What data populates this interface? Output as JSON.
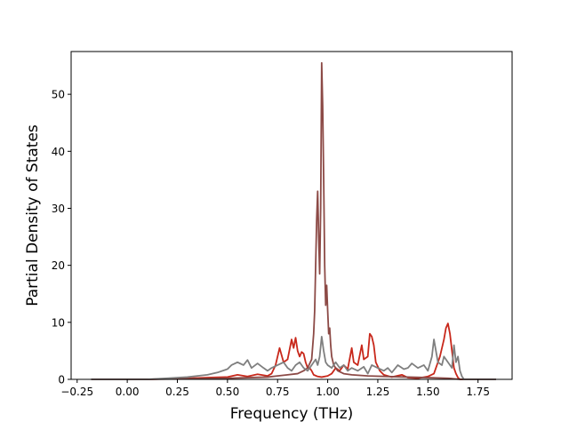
{
  "chart_data": {
    "type": "line",
    "title": "",
    "xlabel": "Frequency (THz)",
    "ylabel": "Partial Density of States",
    "xlim": [
      -0.28,
      1.92
    ],
    "ylim": [
      0,
      57.5
    ],
    "xticks": [
      -0.25,
      0.0,
      0.25,
      0.5,
      0.75,
      1.0,
      1.25,
      1.5,
      1.75
    ],
    "xtick_labels": [
      "−0.25",
      "0.00",
      "0.25",
      "0.50",
      "0.75",
      "1.00",
      "1.25",
      "1.50",
      "1.75"
    ],
    "yticks": [
      0,
      10,
      20,
      30,
      40,
      50
    ],
    "ytick_labels": [
      "0",
      "10",
      "20",
      "30",
      "40",
      "50"
    ],
    "grid": false,
    "legend": false,
    "series": [
      {
        "color": "#c8281b",
        "points": [
          [
            -0.18,
            0
          ],
          [
            0.1,
            0
          ],
          [
            0.2,
            0.1
          ],
          [
            0.3,
            0.2
          ],
          [
            0.4,
            0.3
          ],
          [
            0.5,
            0.4
          ],
          [
            0.55,
            0.8
          ],
          [
            0.6,
            0.5
          ],
          [
            0.65,
            0.9
          ],
          [
            0.7,
            0.6
          ],
          [
            0.72,
            1.0
          ],
          [
            0.74,
            2.5
          ],
          [
            0.76,
            5.5
          ],
          [
            0.78,
            3.0
          ],
          [
            0.8,
            3.5
          ],
          [
            0.82,
            7.0
          ],
          [
            0.83,
            5.5
          ],
          [
            0.84,
            7.3
          ],
          [
            0.85,
            5.0
          ],
          [
            0.86,
            4.0
          ],
          [
            0.87,
            4.8
          ],
          [
            0.88,
            4.5
          ],
          [
            0.89,
            3.0
          ],
          [
            0.9,
            2.0
          ],
          [
            0.91,
            2.0
          ],
          [
            0.92,
            1.5
          ],
          [
            0.93,
            0.8
          ],
          [
            0.95,
            0.5
          ],
          [
            0.97,
            0.4
          ],
          [
            1.0,
            0.6
          ],
          [
            1.02,
            1.0
          ],
          [
            1.04,
            2.0
          ],
          [
            1.06,
            1.5
          ],
          [
            1.08,
            2.5
          ],
          [
            1.1,
            1.8
          ],
          [
            1.12,
            5.5
          ],
          [
            1.13,
            3.0
          ],
          [
            1.15,
            2.5
          ],
          [
            1.17,
            6.0
          ],
          [
            1.18,
            3.5
          ],
          [
            1.2,
            4.0
          ],
          [
            1.21,
            8.0
          ],
          [
            1.22,
            7.5
          ],
          [
            1.23,
            6.0
          ],
          [
            1.24,
            3.0
          ],
          [
            1.26,
            1.5
          ],
          [
            1.28,
            0.8
          ],
          [
            1.32,
            0.4
          ],
          [
            1.37,
            0.8
          ],
          [
            1.4,
            0.3
          ],
          [
            1.45,
            0.2
          ],
          [
            1.5,
            0.5
          ],
          [
            1.53,
            1.0
          ],
          [
            1.55,
            3.0
          ],
          [
            1.56,
            4.0
          ],
          [
            1.58,
            7.0
          ],
          [
            1.59,
            9.0
          ],
          [
            1.6,
            9.8
          ],
          [
            1.61,
            8.0
          ],
          [
            1.62,
            5.0
          ],
          [
            1.63,
            2.0
          ],
          [
            1.64,
            1.0
          ],
          [
            1.65,
            0.3
          ],
          [
            1.66,
            0
          ],
          [
            1.84,
            0
          ]
        ]
      },
      {
        "color": "#8c4a46",
        "points": [
          [
            -0.18,
            0
          ],
          [
            0.1,
            0
          ],
          [
            0.3,
            0.1
          ],
          [
            0.5,
            0.2
          ],
          [
            0.6,
            0.3
          ],
          [
            0.7,
            0.4
          ],
          [
            0.75,
            0.6
          ],
          [
            0.8,
            0.8
          ],
          [
            0.85,
            1.0
          ],
          [
            0.88,
            1.5
          ],
          [
            0.9,
            2.0
          ],
          [
            0.92,
            3.5
          ],
          [
            0.93,
            8.0
          ],
          [
            0.935,
            12.0
          ],
          [
            0.94,
            20.0
          ],
          [
            0.945,
            28.0
          ],
          [
            0.95,
            33.0
          ],
          [
            0.955,
            25.0
          ],
          [
            0.96,
            18.5
          ],
          [
            0.965,
            30.0
          ],
          [
            0.97,
            55.5
          ],
          [
            0.975,
            48.0
          ],
          [
            0.98,
            35.0
          ],
          [
            0.985,
            20.0
          ],
          [
            0.99,
            13.0
          ],
          [
            0.995,
            16.5
          ],
          [
            1.0,
            12.0
          ],
          [
            1.005,
            8.0
          ],
          [
            1.01,
            9.0
          ],
          [
            1.015,
            6.0
          ],
          [
            1.02,
            4.0
          ],
          [
            1.03,
            2.5
          ],
          [
            1.05,
            1.5
          ],
          [
            1.08,
            1.0
          ],
          [
            1.12,
            0.8
          ],
          [
            1.2,
            0.6
          ],
          [
            1.3,
            0.5
          ],
          [
            1.4,
            0.4
          ],
          [
            1.5,
            0.3
          ],
          [
            1.6,
            0.2
          ],
          [
            1.66,
            0
          ],
          [
            1.84,
            0
          ]
        ]
      },
      {
        "color": "#7f7f7f",
        "points": [
          [
            -0.18,
            0
          ],
          [
            0.1,
            0
          ],
          [
            0.2,
            0.2
          ],
          [
            0.3,
            0.4
          ],
          [
            0.35,
            0.6
          ],
          [
            0.4,
            0.8
          ],
          [
            0.45,
            1.2
          ],
          [
            0.5,
            1.8
          ],
          [
            0.52,
            2.5
          ],
          [
            0.55,
            3.0
          ],
          [
            0.58,
            2.5
          ],
          [
            0.6,
            3.4
          ],
          [
            0.62,
            2.0
          ],
          [
            0.65,
            2.8
          ],
          [
            0.68,
            2.0
          ],
          [
            0.7,
            1.5
          ],
          [
            0.72,
            2.0
          ],
          [
            0.75,
            2.5
          ],
          [
            0.78,
            3.0
          ],
          [
            0.8,
            2.0
          ],
          [
            0.82,
            1.5
          ],
          [
            0.84,
            2.5
          ],
          [
            0.86,
            3.0
          ],
          [
            0.88,
            2.0
          ],
          [
            0.9,
            1.5
          ],
          [
            0.92,
            2.5
          ],
          [
            0.94,
            3.5
          ],
          [
            0.95,
            2.5
          ],
          [
            0.96,
            4.0
          ],
          [
            0.97,
            7.5
          ],
          [
            0.98,
            5.0
          ],
          [
            0.99,
            3.0
          ],
          [
            1.0,
            2.5
          ],
          [
            1.02,
            2.0
          ],
          [
            1.04,
            3.0
          ],
          [
            1.06,
            2.0
          ],
          [
            1.08,
            2.5
          ],
          [
            1.1,
            1.5
          ],
          [
            1.12,
            2.0
          ],
          [
            1.15,
            1.5
          ],
          [
            1.18,
            2.2
          ],
          [
            1.2,
            1.0
          ],
          [
            1.22,
            2.5
          ],
          [
            1.25,
            2.0
          ],
          [
            1.28,
            1.5
          ],
          [
            1.3,
            2.0
          ],
          [
            1.32,
            1.2
          ],
          [
            1.35,
            2.5
          ],
          [
            1.38,
            1.8
          ],
          [
            1.4,
            2.0
          ],
          [
            1.42,
            2.8
          ],
          [
            1.45,
            2.0
          ],
          [
            1.48,
            2.5
          ],
          [
            1.5,
            1.5
          ],
          [
            1.52,
            4.0
          ],
          [
            1.53,
            7.0
          ],
          [
            1.54,
            5.0
          ],
          [
            1.55,
            3.0
          ],
          [
            1.57,
            2.5
          ],
          [
            1.58,
            4.0
          ],
          [
            1.6,
            3.0
          ],
          [
            1.62,
            2.0
          ],
          [
            1.63,
            6.0
          ],
          [
            1.64,
            3.0
          ],
          [
            1.65,
            4.0
          ],
          [
            1.66,
            1.5
          ],
          [
            1.67,
            0.5
          ],
          [
            1.68,
            0
          ],
          [
            1.84,
            0
          ]
        ]
      }
    ]
  }
}
